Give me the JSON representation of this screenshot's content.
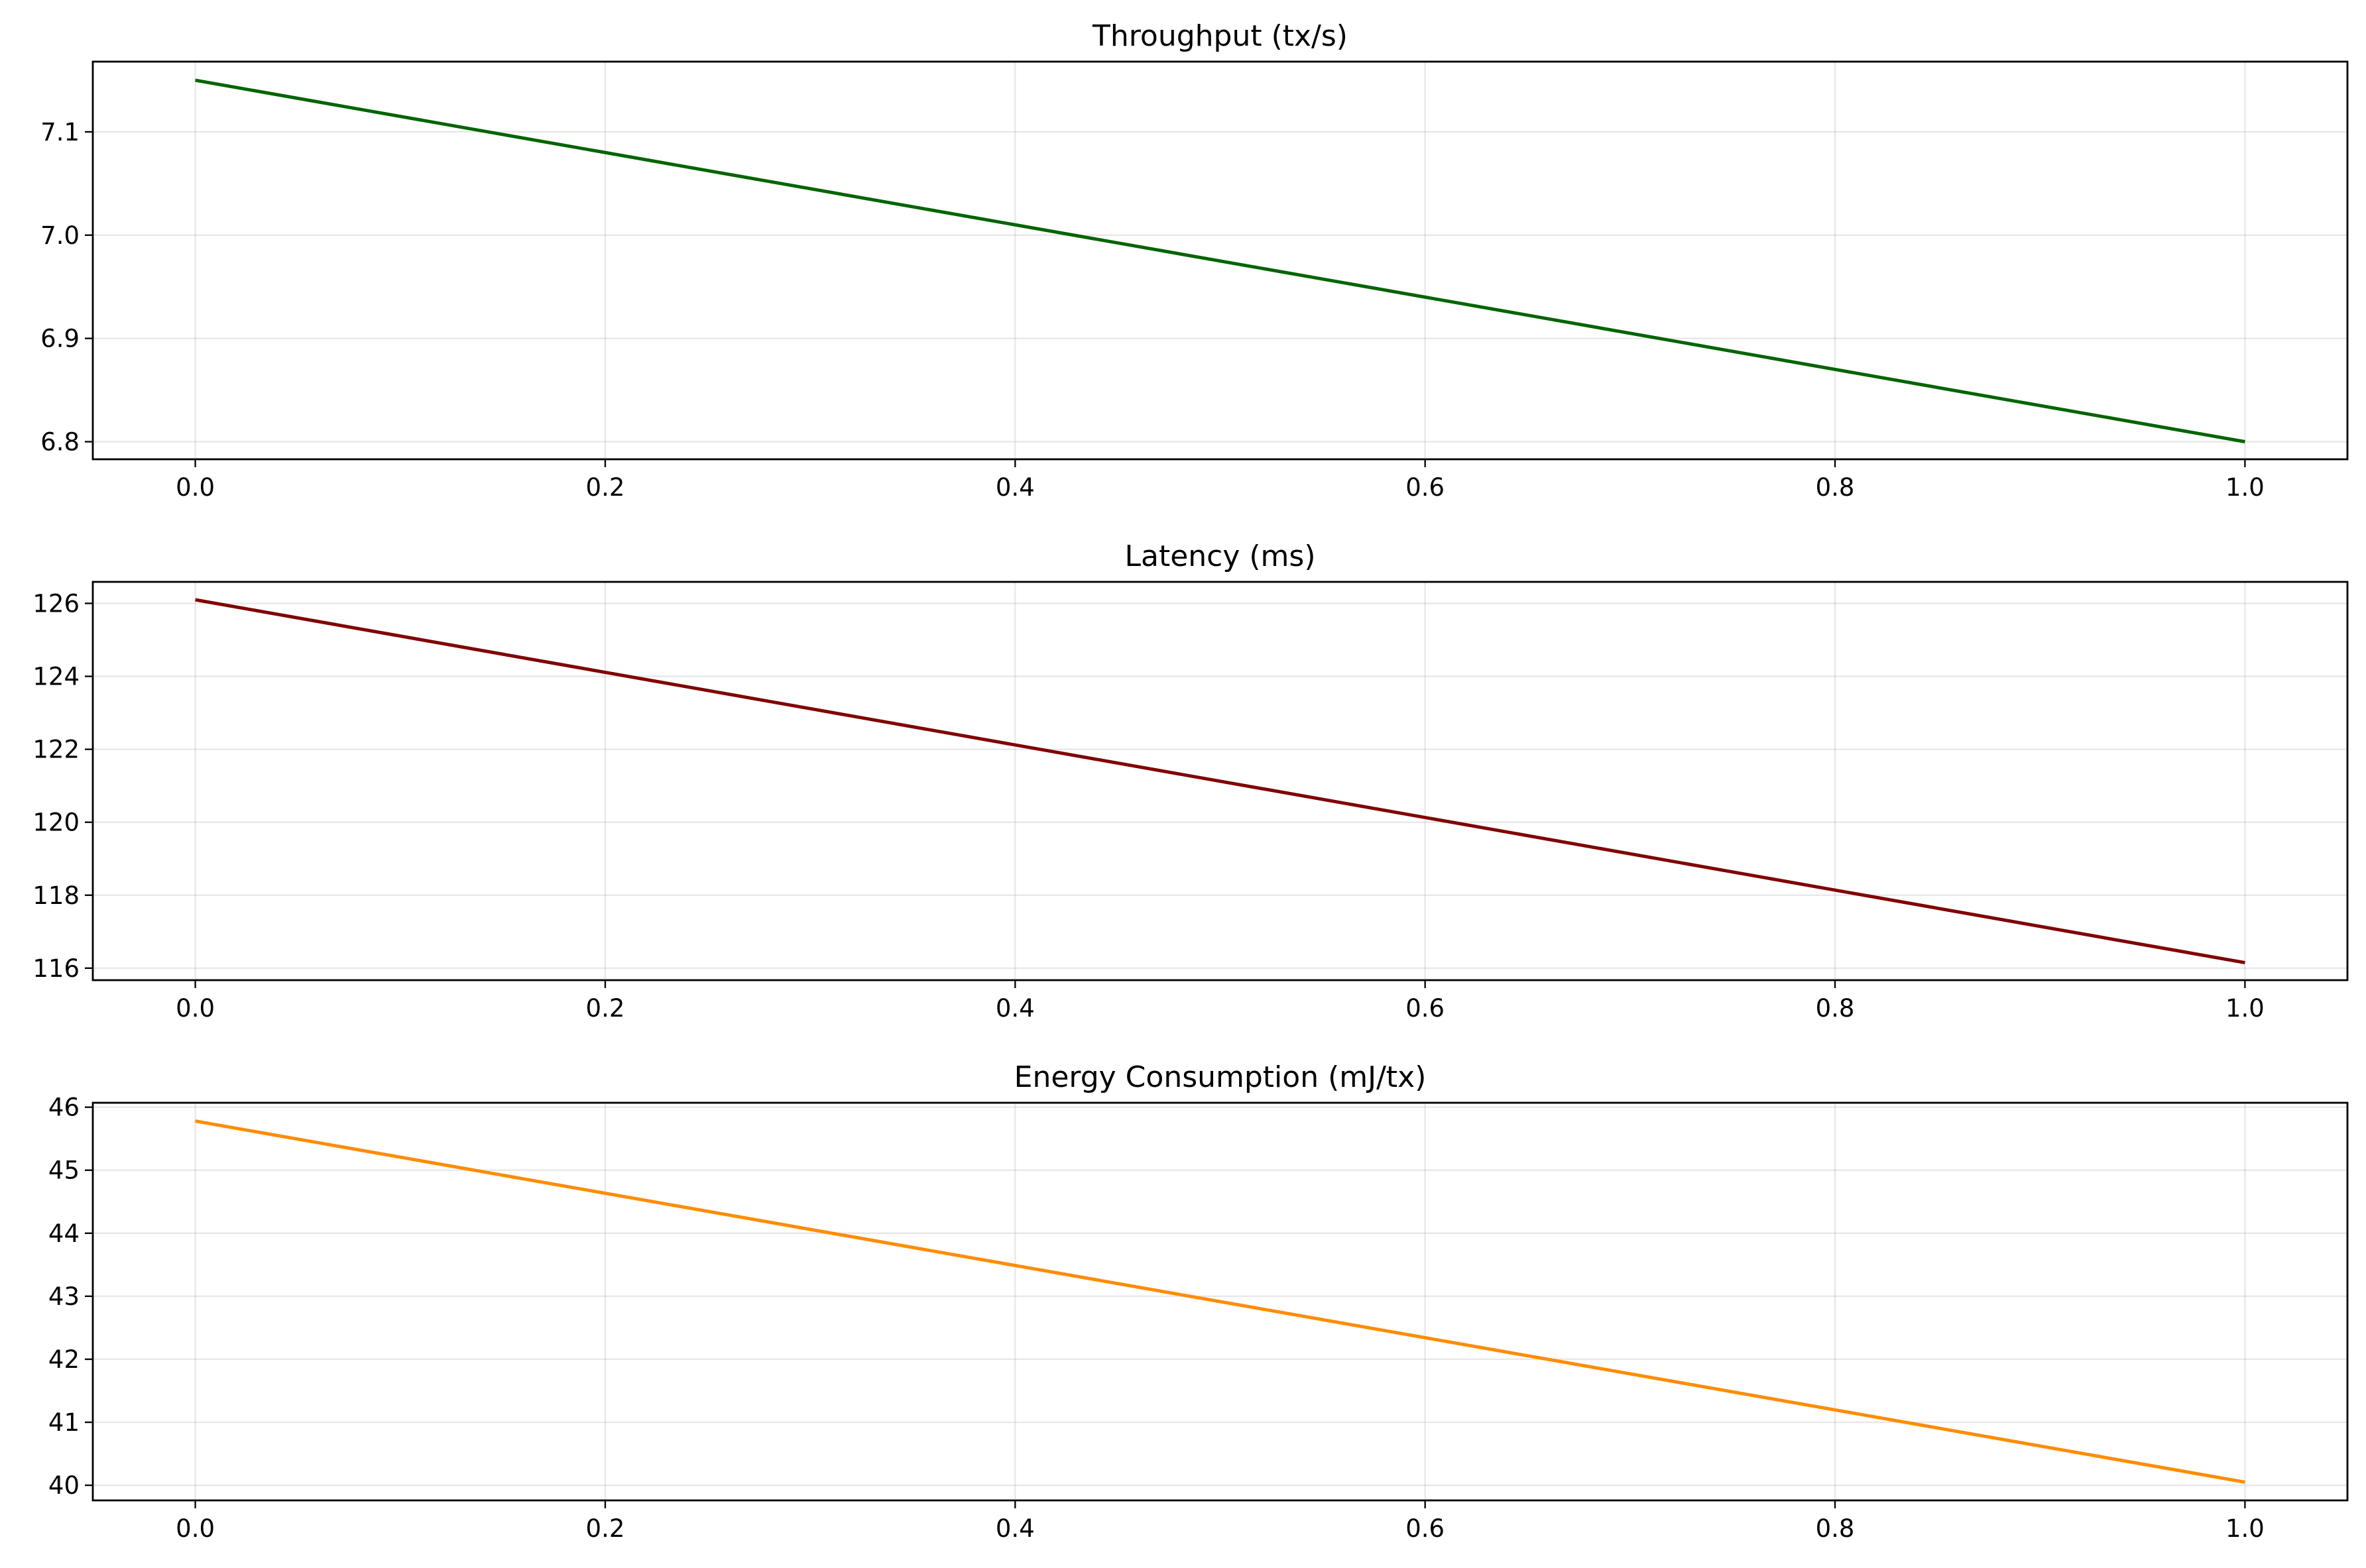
{
  "chart_data": [
    {
      "type": "line",
      "title": "Throughput (tx/s)",
      "xlabel": "",
      "ylabel": "",
      "xlim": [
        -0.05,
        1.05
      ],
      "ylim": [
        6.783,
        7.168
      ],
      "xticks": [
        0.0,
        0.2,
        0.4,
        0.6,
        0.8,
        1.0
      ],
      "xtick_labels": [
        "0.0",
        "0.2",
        "0.4",
        "0.6",
        "0.8",
        "1.0"
      ],
      "yticks": [
        6.8,
        6.9,
        7.0,
        7.1
      ],
      "ytick_labels": [
        "6.8",
        "6.9",
        "7.0",
        "7.1"
      ],
      "grid": true,
      "color": "#006400",
      "series": [
        {
          "x": [
            0.0,
            1.0
          ],
          "y": [
            7.15,
            6.8
          ]
        }
      ]
    },
    {
      "type": "line",
      "title": "Latency (ms)",
      "xlabel": "",
      "ylabel": "",
      "xlim": [
        -0.05,
        1.05
      ],
      "ylim": [
        115.67,
        126.59
      ],
      "xticks": [
        0.0,
        0.2,
        0.4,
        0.6,
        0.8,
        1.0
      ],
      "xtick_labels": [
        "0.0",
        "0.2",
        "0.4",
        "0.6",
        "0.8",
        "1.0"
      ],
      "yticks": [
        116,
        118,
        120,
        122,
        124,
        126
      ],
      "ytick_labels": [
        "116",
        "118",
        "120",
        "122",
        "124",
        "126"
      ],
      "grid": true,
      "color": "#800000",
      "series": [
        {
          "x": [
            0.0,
            1.0
          ],
          "y": [
            126.1,
            116.15
          ]
        }
      ]
    },
    {
      "type": "line",
      "title": "Energy Consumption (mJ/tx)",
      "xlabel": "",
      "ylabel": "",
      "xlim": [
        -0.05,
        1.05
      ],
      "ylim": [
        39.76,
        46.07
      ],
      "xticks": [
        0.0,
        0.2,
        0.4,
        0.6,
        0.8,
        1.0
      ],
      "xtick_labels": [
        "0.0",
        "0.2",
        "0.4",
        "0.6",
        "0.8",
        "1.0"
      ],
      "yticks": [
        40,
        41,
        42,
        43,
        44,
        45,
        46
      ],
      "ytick_labels": [
        "40",
        "41",
        "42",
        "43",
        "44",
        "45",
        "46"
      ],
      "grid": true,
      "color": "#ff8c00",
      "series": [
        {
          "x": [
            0.0,
            1.0
          ],
          "y": [
            45.78,
            40.05
          ]
        }
      ]
    }
  ]
}
